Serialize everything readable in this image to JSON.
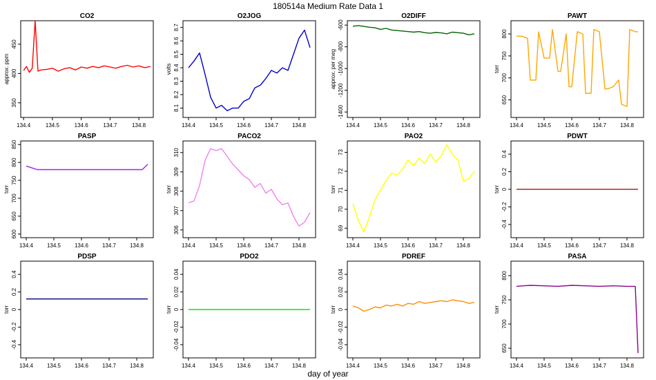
{
  "figure": {
    "title": "180514a   Medium Rate Data 1",
    "xlabel": "day of year"
  },
  "chart_data": [
    {
      "type": "line",
      "title": "CO2",
      "ylabel": "approx. ppm",
      "color": "#ff0000",
      "xlim": [
        134.39,
        134.85
      ],
      "ylim": [
        325,
        490
      ],
      "xticks": [
        134.4,
        134.5,
        134.6,
        134.7,
        134.8
      ],
      "yticks": [
        350,
        400,
        450
      ],
      "series": [
        {
          "x": [
            134.4,
            134.41,
            134.42,
            134.43,
            134.44,
            134.45,
            134.46,
            134.48,
            134.5,
            134.52,
            134.54,
            134.56,
            134.58,
            134.6,
            134.62,
            134.64,
            134.66,
            134.68,
            134.7,
            134.72,
            134.74,
            134.76,
            134.78,
            134.8,
            134.82,
            134.84
          ],
          "values": [
            405,
            412,
            402,
            409,
            490,
            404,
            406,
            407,
            409,
            404,
            408,
            410,
            406,
            411,
            409,
            412,
            410,
            413,
            411,
            409,
            412,
            414,
            411,
            413,
            410,
            412
          ]
        }
      ]
    },
    {
      "type": "line",
      "title": "O2JOG",
      "ylabel": "volts",
      "color": "#0000cc",
      "xlim": [
        134.38,
        134.86
      ],
      "ylim": [
        8.03,
        8.75
      ],
      "xticks": [
        134.4,
        134.5,
        134.6,
        134.7,
        134.8
      ],
      "yticks": [
        8.1,
        8.2,
        8.3,
        8.4,
        8.5,
        8.6,
        8.7
      ],
      "series": [
        {
          "x": [
            134.4,
            134.42,
            134.44,
            134.46,
            134.48,
            134.5,
            134.52,
            134.54,
            134.56,
            134.58,
            134.6,
            134.62,
            134.64,
            134.66,
            134.68,
            134.7,
            134.72,
            134.74,
            134.76,
            134.78,
            134.8,
            134.82,
            134.84
          ],
          "values": [
            8.4,
            8.45,
            8.51,
            8.35,
            8.18,
            8.1,
            8.12,
            8.08,
            8.1,
            8.1,
            8.15,
            8.17,
            8.25,
            8.27,
            8.32,
            8.38,
            8.36,
            8.4,
            8.38,
            8.5,
            8.62,
            8.68,
            8.55
          ]
        }
      ]
    },
    {
      "type": "line",
      "title": "O2DIFF",
      "ylabel": "approx. per meg",
      "color": "#006400",
      "xlim": [
        134.38,
        134.86
      ],
      "ylim": [
        -1450,
        -560
      ],
      "xticks": [
        134.4,
        134.5,
        134.6,
        134.7,
        134.8
      ],
      "yticks": [
        -600,
        -800,
        -1000,
        -1200,
        -1400
      ],
      "series": [
        {
          "x": [
            134.4,
            134.42,
            134.44,
            134.46,
            134.48,
            134.5,
            134.52,
            134.54,
            134.56,
            134.58,
            134.6,
            134.62,
            134.64,
            134.66,
            134.68,
            134.7,
            134.72,
            134.74,
            134.76,
            134.78,
            134.8,
            134.82,
            134.84
          ],
          "values": [
            -610,
            -605,
            -612,
            -620,
            -625,
            -640,
            -630,
            -645,
            -650,
            -655,
            -660,
            -665,
            -660,
            -670,
            -675,
            -668,
            -672,
            -680,
            -665,
            -670,
            -675,
            -690,
            -680
          ]
        }
      ]
    },
    {
      "type": "line",
      "title": "PAWT",
      "ylabel": "torr",
      "color": "#ffa500",
      "xlim": [
        134.38,
        134.86
      ],
      "ylim": [
        610,
        830
      ],
      "xticks": [
        134.4,
        134.5,
        134.6,
        134.7,
        134.8
      ],
      "yticks": [
        650,
        700,
        750,
        800
      ],
      "series": [
        {
          "x": [
            134.4,
            134.42,
            134.44,
            134.45,
            134.47,
            134.48,
            134.5,
            134.52,
            134.53,
            134.55,
            134.56,
            134.58,
            134.59,
            134.6,
            134.62,
            134.64,
            134.65,
            134.67,
            134.68,
            134.7,
            134.72,
            134.73,
            134.75,
            134.77,
            134.78,
            134.8,
            134.81,
            134.83,
            134.84
          ],
          "values": [
            795,
            795,
            790,
            695,
            695,
            805,
            745,
            745,
            810,
            715,
            715,
            800,
            680,
            680,
            805,
            800,
            665,
            665,
            810,
            805,
            675,
            675,
            680,
            695,
            640,
            635,
            810,
            805,
            805
          ]
        }
      ]
    },
    {
      "type": "line",
      "title": "PASP",
      "ylabel": "torr",
      "color": "#a020f0",
      "xlim": [
        134.38,
        134.86
      ],
      "ylim": [
        590,
        860
      ],
      "xticks": [
        134.4,
        134.5,
        134.6,
        134.7,
        134.8
      ],
      "yticks": [
        600,
        650,
        700,
        750,
        800,
        850
      ],
      "series": [
        {
          "x": [
            134.4,
            134.42,
            134.44,
            134.46,
            134.48,
            134.5,
            134.52,
            134.54,
            134.56,
            134.58,
            134.6,
            134.62,
            134.64,
            134.66,
            134.68,
            134.7,
            134.72,
            134.74,
            134.76,
            134.78,
            134.8,
            134.82,
            134.84
          ],
          "values": [
            790,
            785,
            780,
            780,
            780,
            780,
            780,
            780,
            780,
            780,
            780,
            780,
            780,
            780,
            780,
            780,
            780,
            780,
            780,
            780,
            780,
            780,
            795
          ]
        }
      ]
    },
    {
      "type": "line",
      "title": "PACO2",
      "ylabel": "torr",
      "color": "#ee82ee",
      "xlim": [
        134.38,
        134.86
      ],
      "ylim": [
        305.6,
        310.6
      ],
      "xticks": [
        134.4,
        134.5,
        134.6,
        134.7,
        134.8
      ],
      "yticks": [
        306,
        307,
        308,
        309,
        310
      ],
      "series": [
        {
          "x": [
            134.4,
            134.42,
            134.44,
            134.46,
            134.48,
            134.5,
            134.52,
            134.54,
            134.56,
            134.58,
            134.6,
            134.62,
            134.64,
            134.66,
            134.68,
            134.7,
            134.72,
            134.74,
            134.76,
            134.78,
            134.8,
            134.82,
            134.84
          ],
          "values": [
            307.4,
            307.5,
            308.3,
            309.6,
            310.2,
            310.1,
            310.2,
            309.8,
            309.4,
            309.1,
            308.8,
            308.6,
            308.2,
            308.4,
            307.9,
            308.1,
            307.6,
            307.3,
            307.4,
            306.7,
            306.2,
            306.4,
            306.9
          ]
        }
      ]
    },
    {
      "type": "line",
      "title": "PAO2",
      "ylabel": "torr",
      "color": "#ffff00",
      "xlim": [
        134.38,
        134.86
      ],
      "ylim": [
        68.5,
        73.6
      ],
      "xticks": [
        134.4,
        134.5,
        134.6,
        134.7,
        134.8
      ],
      "yticks": [
        69,
        70,
        71,
        72,
        73
      ],
      "series": [
        {
          "x": [
            134.4,
            134.42,
            134.44,
            134.46,
            134.48,
            134.5,
            134.52,
            134.54,
            134.56,
            134.58,
            134.6,
            134.62,
            134.64,
            134.66,
            134.68,
            134.7,
            134.72,
            134.74,
            134.76,
            134.78,
            134.8,
            134.82,
            134.84
          ],
          "values": [
            70.3,
            69.4,
            68.8,
            69.6,
            70.5,
            71.0,
            71.5,
            71.9,
            71.8,
            72.1,
            72.6,
            72.3,
            72.7,
            72.4,
            72.9,
            72.5,
            72.8,
            73.4,
            72.9,
            72.6,
            71.5,
            71.6,
            72.0
          ]
        }
      ]
    },
    {
      "type": "line",
      "title": "PDWT",
      "ylabel": "torr",
      "color": "#a52a2a",
      "xlim": [
        134.38,
        134.86
      ],
      "ylim": [
        -0.55,
        0.55
      ],
      "xticks": [
        134.4,
        134.5,
        134.6,
        134.7,
        134.8
      ],
      "yticks": [
        -0.4,
        -0.2,
        0.0,
        0.2,
        0.4
      ],
      "series": [
        {
          "x": [
            134.4,
            134.5,
            134.6,
            134.7,
            134.8,
            134.84
          ],
          "values": [
            0.0,
            0.0,
            0.0,
            0.0,
            0.0,
            0.0
          ]
        }
      ]
    },
    {
      "type": "line",
      "title": "PDSP",
      "ylabel": "torr",
      "color": "#000080",
      "xlim": [
        134.38,
        134.86
      ],
      "ylim": [
        -0.55,
        0.55
      ],
      "xticks": [
        134.4,
        134.5,
        134.6,
        134.7,
        134.8
      ],
      "yticks": [
        -0.4,
        -0.2,
        0.0,
        0.2,
        0.4
      ],
      "series": [
        {
          "x": [
            134.4,
            134.5,
            134.6,
            134.7,
            134.8,
            134.84
          ],
          "values": [
            0.12,
            0.12,
            0.12,
            0.12,
            0.12,
            0.12
          ]
        }
      ]
    },
    {
      "type": "line",
      "title": "PDO2",
      "ylabel": "torr",
      "color": "#00ee00",
      "xlim": [
        134.38,
        134.86
      ],
      "ylim": [
        -0.055,
        0.055
      ],
      "xticks": [
        134.4,
        134.5,
        134.6,
        134.7,
        134.8
      ],
      "yticks": [
        -0.04,
        -0.02,
        0.0,
        0.02,
        0.04
      ],
      "series": [
        {
          "x": [
            134.4,
            134.5,
            134.6,
            134.7,
            134.8,
            134.84
          ],
          "values": [
            0.0,
            0.0,
            0.0,
            0.0,
            0.0,
            0.0
          ]
        }
      ]
    },
    {
      "type": "line",
      "title": "PDREF",
      "ylabel": "torr",
      "color": "#ff8c00",
      "xlim": [
        134.38,
        134.86
      ],
      "ylim": [
        -0.055,
        0.055
      ],
      "xticks": [
        134.4,
        134.5,
        134.6,
        134.7,
        134.8
      ],
      "yticks": [
        -0.04,
        -0.02,
        0.0,
        0.02,
        0.04
      ],
      "series": [
        {
          "x": [
            134.4,
            134.42,
            134.44,
            134.46,
            134.48,
            134.5,
            134.52,
            134.54,
            134.56,
            134.58,
            134.6,
            134.62,
            134.64,
            134.66,
            134.68,
            134.7,
            134.72,
            134.74,
            134.76,
            134.78,
            134.8,
            134.82,
            134.84
          ],
          "values": [
            0.004,
            0.002,
            -0.002,
            0.0,
            0.003,
            0.002,
            0.005,
            0.004,
            0.006,
            0.004,
            0.007,
            0.006,
            0.009,
            0.007,
            0.008,
            0.009,
            0.01,
            0.009,
            0.011,
            0.01,
            0.009,
            0.007,
            0.008
          ]
        }
      ]
    },
    {
      "type": "line",
      "title": "PASA",
      "ylabel": "torr",
      "color": "#8b008b",
      "xlim": [
        134.38,
        134.86
      ],
      "ylim": [
        630,
        830
      ],
      "xticks": [
        134.4,
        134.5,
        134.6,
        134.7,
        134.8
      ],
      "yticks": [
        650,
        700,
        750,
        800
      ],
      "series": [
        {
          "x": [
            134.4,
            134.45,
            134.5,
            134.55,
            134.6,
            134.65,
            134.7,
            134.75,
            134.8,
            134.83,
            134.84
          ],
          "values": [
            778,
            780,
            779,
            778,
            780,
            779,
            778,
            779,
            778,
            778,
            640
          ]
        }
      ]
    }
  ]
}
